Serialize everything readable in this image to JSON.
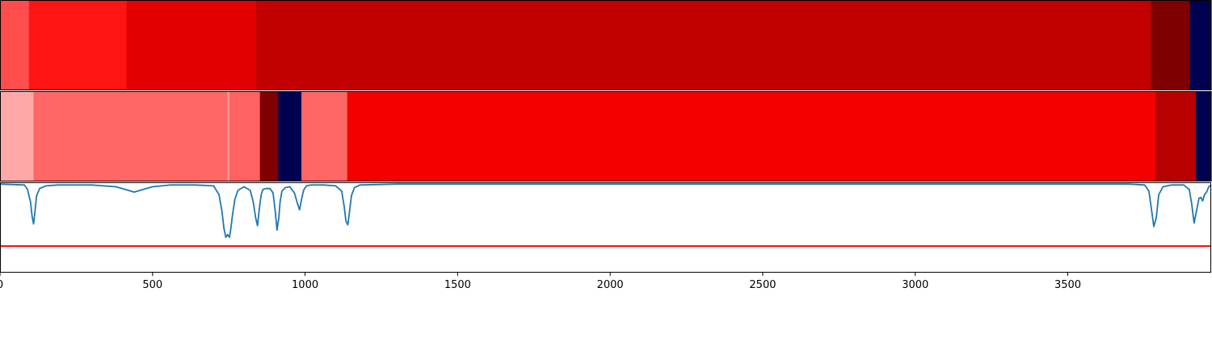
{
  "chart_data": [
    {
      "type": "heatmap",
      "panel": "top",
      "colormap": "seismic",
      "segments": [
        {
          "start": 0,
          "end": 95,
          "color": "#ff4d4d"
        },
        {
          "start": 95,
          "end": 415,
          "color": "#ff1414"
        },
        {
          "start": 415,
          "end": 840,
          "color": "#e20000"
        },
        {
          "start": 840,
          "end": 3772,
          "color": "#c20000"
        },
        {
          "start": 3772,
          "end": 3900,
          "color": "#7f0000"
        },
        {
          "start": 3900,
          "end": 3970,
          "color": "#000050"
        }
      ]
    },
    {
      "type": "heatmap",
      "panel": "middle",
      "colormap": "seismic",
      "segments": [
        {
          "start": 0,
          "end": 110,
          "color": "#ffa8a8"
        },
        {
          "start": 110,
          "end": 745,
          "color": "#ff6666"
        },
        {
          "start": 745,
          "end": 752,
          "color": "#ff9a9a"
        },
        {
          "start": 752,
          "end": 852,
          "color": "#ff6262"
        },
        {
          "start": 852,
          "end": 912,
          "color": "#7f0000"
        },
        {
          "start": 912,
          "end": 988,
          "color": "#000050"
        },
        {
          "start": 988,
          "end": 1138,
          "color": "#ff6666"
        },
        {
          "start": 1138,
          "end": 3788,
          "color": "#f50000"
        },
        {
          "start": 3788,
          "end": 3920,
          "color": "#b80000"
        },
        {
          "start": 3920,
          "end": 3970,
          "color": "#000050"
        }
      ]
    },
    {
      "type": "line",
      "panel": "bottom",
      "xlim": [
        0,
        3970
      ],
      "ylim": [
        -1.0,
        0.02
      ],
      "series": [
        {
          "color": "#1f77b4",
          "x": [
            0,
            80,
            90,
            100,
            105,
            110,
            115,
            120,
            130,
            150,
            190,
            300,
            380,
            420,
            440,
            460,
            500,
            560,
            640,
            700,
            718,
            728,
            734,
            740,
            746,
            752,
            756,
            762,
            770,
            780,
            800,
            820,
            830,
            838,
            844,
            850,
            856,
            862,
            872,
            885,
            895,
            902,
            908,
            914,
            918,
            924,
            935,
            950,
            965,
            975,
            982,
            988,
            995,
            1005,
            1020,
            1060,
            1100,
            1120,
            1128,
            1134,
            1140,
            1146,
            1152,
            1162,
            1180,
            1300,
            2000,
            3000,
            3700,
            3752,
            3766,
            3774,
            3782,
            3790,
            3798,
            3812,
            3840,
            3880,
            3898,
            3906,
            3914,
            3922,
            3930,
            3936,
            3942,
            3948,
            3955,
            3962,
            3970
          ],
          "y": [
            0,
            -0.01,
            -0.06,
            -0.2,
            -0.36,
            -0.45,
            -0.3,
            -0.13,
            -0.05,
            -0.02,
            -0.01,
            -0.01,
            -0.03,
            -0.07,
            -0.09,
            -0.07,
            -0.03,
            -0.01,
            -0.01,
            -0.02,
            -0.12,
            -0.32,
            -0.5,
            -0.6,
            -0.57,
            -0.6,
            -0.52,
            -0.35,
            -0.17,
            -0.07,
            -0.03,
            -0.07,
            -0.2,
            -0.38,
            -0.47,
            -0.28,
            -0.12,
            -0.06,
            -0.05,
            -0.05,
            -0.1,
            -0.3,
            -0.52,
            -0.38,
            -0.2,
            -0.08,
            -0.04,
            -0.03,
            -0.1,
            -0.22,
            -0.29,
            -0.18,
            -0.07,
            -0.02,
            -0.01,
            -0.01,
            -0.02,
            -0.08,
            -0.25,
            -0.42,
            -0.46,
            -0.3,
            -0.13,
            -0.04,
            -0.01,
            0,
            0,
            0,
            0,
            -0.01,
            -0.08,
            -0.28,
            -0.48,
            -0.38,
            -0.12,
            -0.03,
            -0.01,
            -0.01,
            -0.06,
            -0.22,
            -0.44,
            -0.3,
            -0.16,
            -0.15,
            -0.19,
            -0.12,
            -0.09,
            -0.03,
            -0.01
          ]
        },
        {
          "color": "#ff0000",
          "x": [
            0,
            3970
          ],
          "y": [
            -0.7,
            -0.7
          ]
        }
      ]
    }
  ],
  "x_axis": {
    "ticks": [
      0,
      500,
      1000,
      1500,
      2000,
      2500,
      3000,
      3500
    ],
    "labels": [
      "0",
      "500",
      "1000",
      "1500",
      "2000",
      "2500",
      "3000",
      "3500"
    ]
  }
}
